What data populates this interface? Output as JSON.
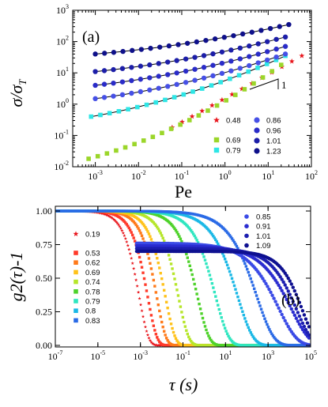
{
  "chart_data": [
    {
      "type": "scatter",
      "panel_label": "(a)",
      "xlabel": "Pe",
      "ylabel": "σ/σ",
      "ylabel_sub": "T",
      "xscale": "log",
      "yscale": "log",
      "xlim": [
        0.0003,
        100
      ],
      "ylim": [
        0.01,
        1000
      ],
      "xticks": [
        "10-3",
        "10-2",
        "10-1",
        "100",
        "101",
        "102"
      ],
      "yticks": [
        "10-2",
        "10-1",
        "100",
        "101",
        "102",
        "103"
      ],
      "slope_annotation": "1",
      "legend_placement": "bottom-right",
      "series": [
        {
          "name": "0.48",
          "color": "#e8141b",
          "marker": "star",
          "x_range": [
            0.06,
            60
          ],
          "y_range": [
            0.18,
            35
          ],
          "points": 14
        },
        {
          "name": "0.69",
          "color": "#9bd62a",
          "marker": "square",
          "x_range": [
            0.0007,
            20
          ],
          "y_range": [
            0.018,
            18
          ],
          "points": 22
        },
        {
          "name": "0.79",
          "color": "#2ee6e6",
          "marker": "square",
          "x_range": [
            0.0008,
            25
          ],
          "y_range": [
            0.4,
            35
          ],
          "points": 22
        },
        {
          "name": "0.86",
          "color": "#4650e6",
          "marker": "circle",
          "x_range": [
            0.001,
            25
          ],
          "y_range": [
            1.5,
            40
          ],
          "points": 22
        },
        {
          "name": "0.96",
          "color": "#2a2cc8",
          "marker": "circle",
          "x_range": [
            0.001,
            25
          ],
          "y_range": [
            4,
            70
          ],
          "points": 22
        },
        {
          "name": "1.01",
          "color": "#1c1ea8",
          "marker": "circle",
          "x_range": [
            0.001,
            25
          ],
          "y_range": [
            11,
            140
          ],
          "points": 22
        },
        {
          "name": "1.23",
          "color": "#0e108a",
          "marker": "circle",
          "x_range": [
            0.001,
            30
          ],
          "y_range": [
            40,
            350
          ],
          "points": 22
        }
      ]
    },
    {
      "type": "scatter",
      "panel_label": "(b)",
      "xlabel": "τ (s)",
      "ylabel": "g2(τ)-1",
      "xscale": "log",
      "xlim": [
        1e-07,
        100000.0
      ],
      "ylim": [
        0,
        1.0
      ],
      "xticks": [
        "10-7",
        "10-5",
        "10-3",
        "10-1",
        "101",
        "103",
        "105"
      ],
      "yticks": [
        "0.00",
        "0.25",
        "0.50",
        "0.75",
        "1.00"
      ],
      "legend_placement": "left and top-right",
      "series": [
        {
          "name": "0.19",
          "color": "#e8141b",
          "marker": "star",
          "tau_half": 0.0006,
          "beta": 1.0
        },
        {
          "name": "0.53",
          "color": "#ff3a2a",
          "marker": "square",
          "tau_half": 0.0015,
          "beta": 1.0
        },
        {
          "name": "0.62",
          "color": "#ff7a1a",
          "marker": "square",
          "tau_half": 0.004,
          "beta": 1.0
        },
        {
          "name": "0.69",
          "color": "#ffc21a",
          "marker": "square",
          "tau_half": 0.01,
          "beta": 0.95
        },
        {
          "name": "0.74",
          "color": "#b6e62a",
          "marker": "square",
          "tau_half": 0.04,
          "beta": 0.9
        },
        {
          "name": "0.78",
          "color": "#4ed22a",
          "marker": "square",
          "tau_half": 0.3,
          "beta": 0.8
        },
        {
          "name": "0.79",
          "color": "#2ee6c0",
          "marker": "square",
          "tau_half": 2,
          "beta": 0.7
        },
        {
          "name": "0.8",
          "color": "#1ab8e6",
          "marker": "square",
          "tau_half": 20,
          "beta": 0.6
        },
        {
          "name": "0.83",
          "color": "#2a6ae6",
          "marker": "square",
          "tau_half": 150,
          "beta": 0.55
        },
        {
          "name": "0.85",
          "color": "#3a4ae6",
          "marker": "circle",
          "tau_half": 1500,
          "beta": 0.5
        },
        {
          "name": "0.91",
          "color": "#2a2cd0",
          "marker": "circle",
          "tau_half": 6000,
          "beta": 0.5
        },
        {
          "name": "1.01",
          "color": "#1c1eb0",
          "marker": "circle",
          "tau_half": 12000,
          "beta": 0.6
        },
        {
          "name": "1.09",
          "color": "#0e1090",
          "marker": "circle",
          "tau_half": 25000,
          "beta": 0.7
        }
      ]
    }
  ]
}
